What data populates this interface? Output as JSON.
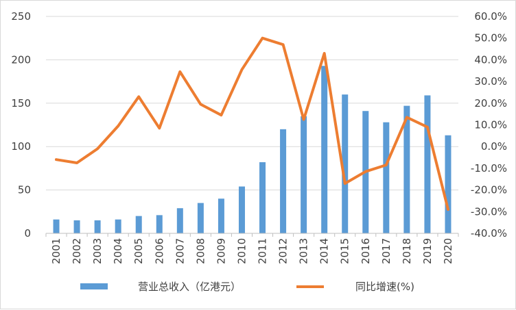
{
  "chart_data": {
    "type": "bar",
    "categories": [
      "2001",
      "2002",
      "2003",
      "2004",
      "2005",
      "2006",
      "2007",
      "2008",
      "2009",
      "2010",
      "2011",
      "2012",
      "2013",
      "2014",
      "2015",
      "2016",
      "2017",
      "2018",
      "2019",
      "2020"
    ],
    "series": [
      {
        "name": "营业总收入（亿港元）",
        "type": "bar",
        "axis": "left",
        "color": "#5b9bd5",
        "values": [
          16,
          15,
          15,
          16,
          20,
          21,
          29,
          35,
          40,
          54,
          82,
          120,
          135,
          193,
          160,
          141,
          128,
          147,
          159,
          113
        ]
      },
      {
        "name": "同比增速(%)",
        "type": "line",
        "axis": "right",
        "color": "#ed7d31",
        "values": [
          -6.0,
          -7.5,
          -1.0,
          9.5,
          23.0,
          8.5,
          34.5,
          19.5,
          14.5,
          35.5,
          50.0,
          47.0,
          12.5,
          43.0,
          -17.0,
          -11.5,
          -8.5,
          13.5,
          9.0,
          -29.0
        ]
      }
    ],
    "ylim_left": [
      0,
      250
    ],
    "yticks_left": [
      "0",
      "50",
      "100",
      "150",
      "200",
      "250"
    ],
    "ylim_right": [
      -40,
      60
    ],
    "yticks_right": [
      "-40.0%",
      "-30.0%",
      "-20.0%",
      "-10.0%",
      "0.0%",
      "10.0%",
      "20.0%",
      "30.0%",
      "40.0%",
      "50.0%",
      "60.0%"
    ],
    "grid": "horizontal",
    "legend_position": "bottom",
    "title": "",
    "xlabel": "",
    "ylabel": ""
  },
  "legend": {
    "bar_label": "营业总收入（亿港元）",
    "line_label": "同比增速(%)"
  }
}
